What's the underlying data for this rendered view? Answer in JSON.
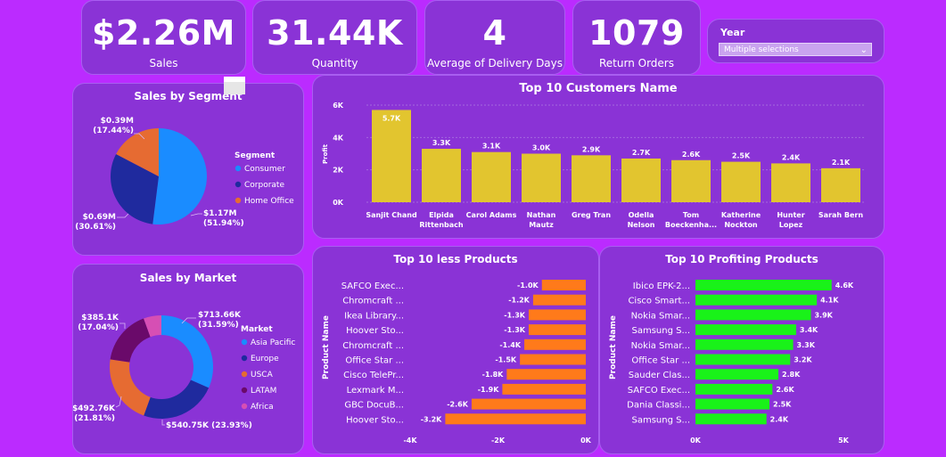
{
  "kpis": [
    {
      "value": "$2.26M",
      "label": "Sales"
    },
    {
      "value": "31.44K",
      "label": "Quantity"
    },
    {
      "value": "4",
      "label": "Average of Delivery  Days"
    },
    {
      "value": "1079",
      "label": "Return Orders"
    }
  ],
  "slicer": {
    "title": "Year",
    "value": "Multiple selections",
    "icon": "chevron-down-icon"
  },
  "colors": {
    "background": "#bb2bff",
    "card": "#8a33d6",
    "bar_yellow": "#e2c52f",
    "bar_orange": "#ff7a1a",
    "bar_green": "#19f219",
    "consumer": "#1a8cff",
    "corporate": "#1f2a9e",
    "home_office": "#e66b32",
    "asia_pacific": "#1a8cff",
    "europe": "#1f2a9e",
    "usca": "#e66b32",
    "latam": "#6a0a6a",
    "africa": "#d64fb4"
  },
  "chart_data": [
    {
      "type": "pie",
      "title": "Sales by Segment",
      "legend_title": "Segment",
      "legend_position": "right",
      "slices": [
        {
          "name": "Consumer",
          "value": 1.17,
          "label": "$1.17M",
          "pct": "(51.94%)"
        },
        {
          "name": "Corporate",
          "value": 0.69,
          "label": "$0.69M",
          "pct": "(30.61%)"
        },
        {
          "name": "Home Office",
          "value": 0.39,
          "label": "$0.39M",
          "pct": "(17.44%)"
        }
      ]
    },
    {
      "type": "bar",
      "title": "Top 10 Customers Name",
      "ylabel": "Profit",
      "ylim": [
        0,
        6000
      ],
      "yticks": [
        "0K",
        "2K",
        "4K",
        "6K"
      ],
      "ytick_values": [
        0,
        2000,
        4000,
        6000
      ],
      "categories": [
        [
          "Sanjit Chand"
        ],
        [
          "Elpida",
          "Rittenbach"
        ],
        [
          "Carol Adams"
        ],
        [
          "Nathan",
          "Mautz"
        ],
        [
          "Greg Tran"
        ],
        [
          "Odella",
          "Nelson"
        ],
        [
          "Tom",
          "Boeckenha..."
        ],
        [
          "Katherine",
          "Nockton"
        ],
        [
          "Hunter",
          "Lopez"
        ],
        [
          "Sarah Bern"
        ]
      ],
      "values": [
        5700,
        3300,
        3100,
        3000,
        2900,
        2700,
        2600,
        2500,
        2400,
        2100
      ],
      "labels": [
        "5.7K",
        "3.3K",
        "3.1K",
        "3.0K",
        "2.9K",
        "2.7K",
        "2.6K",
        "2.5K",
        "2.4K",
        "2.1K"
      ]
    },
    {
      "type": "pie",
      "title": "Sales by Market",
      "legend_title": "Market",
      "legend_position": "right",
      "donut": true,
      "slices": [
        {
          "name": "Asia Pacific",
          "value": 713.66,
          "label": "$713.66K",
          "pct": "(31.59%)"
        },
        {
          "name": "Europe",
          "value": 540.75,
          "label": "$540.75K (23.93%)",
          "pct": ""
        },
        {
          "name": "USCA",
          "value": 492.76,
          "label": "$492.76K",
          "pct": "(21.81%)"
        },
        {
          "name": "LATAM",
          "value": 385.1,
          "label": "$385.1K",
          "pct": "(17.04%)"
        },
        {
          "name": "Africa",
          "value": 126.0,
          "label": "",
          "pct": ""
        }
      ]
    },
    {
      "type": "bar",
      "orientation": "horizontal",
      "title": "Top 10 less Products",
      "ylabel": "Product Name",
      "xlim": [
        -4000,
        0
      ],
      "xticks": [
        "-4K",
        "-2K",
        "0K"
      ],
      "xtick_values": [
        -4000,
        -2000,
        0
      ],
      "categories": [
        "SAFCO Exec...",
        "Chromcraft ...",
        "Ikea Library...",
        "Hoover Sto...",
        "Chromcraft ...",
        "Office Star ...",
        "Cisco TelePr...",
        "Lexmark M...",
        "GBC DocuB...",
        "Hoover Sto..."
      ],
      "values": [
        -1000,
        -1200,
        -1300,
        -1300,
        -1400,
        -1500,
        -1800,
        -1900,
        -2600,
        -3200
      ],
      "labels": [
        "-1.0K",
        "-1.2K",
        "-1.3K",
        "-1.3K",
        "-1.4K",
        "-1.5K",
        "-1.8K",
        "-1.9K",
        "-2.6K",
        "-3.2K"
      ]
    },
    {
      "type": "bar",
      "orientation": "horizontal",
      "title": "Top 10 Profiting Products",
      "ylabel": "Product Name",
      "xlim": [
        0,
        5000
      ],
      "xticks": [
        "0K",
        "5K"
      ],
      "xtick_values": [
        0,
        5000
      ],
      "categories": [
        "Ibico EPK-2...",
        "Cisco Smart...",
        "Nokia Smar...",
        "Samsung S...",
        "Nokia Smar...",
        "Office Star ...",
        "Sauder Clas...",
        "SAFCO Exec...",
        "Dania Classi...",
        "Samsung S..."
      ],
      "values": [
        4600,
        4100,
        3900,
        3400,
        3300,
        3200,
        2800,
        2600,
        2500,
        2400
      ],
      "labels": [
        "4.6K",
        "4.1K",
        "3.9K",
        "3.4K",
        "3.3K",
        "3.2K",
        "2.8K",
        "2.6K",
        "2.5K",
        "2.4K"
      ]
    }
  ]
}
